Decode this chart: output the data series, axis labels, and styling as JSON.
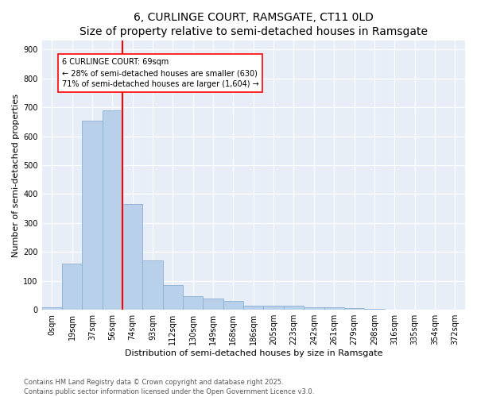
{
  "title": "6, CURLINGE COURT, RAMSGATE, CT11 0LD",
  "subtitle": "Size of property relative to semi-detached houses in Ramsgate",
  "xlabel": "Distribution of semi-detached houses by size in Ramsgate",
  "ylabel": "Number of semi-detached properties",
  "bar_labels": [
    "0sqm",
    "19sqm",
    "37sqm",
    "56sqm",
    "74sqm",
    "93sqm",
    "112sqm",
    "130sqm",
    "149sqm",
    "168sqm",
    "186sqm",
    "205sqm",
    "223sqm",
    "242sqm",
    "261sqm",
    "279sqm",
    "298sqm",
    "316sqm",
    "335sqm",
    "354sqm",
    "372sqm"
  ],
  "bar_values": [
    8,
    160,
    655,
    690,
    365,
    170,
    85,
    48,
    38,
    30,
    15,
    14,
    13,
    10,
    8,
    5,
    3,
    1,
    0,
    0,
    0
  ],
  "bar_color": "#b8d0ea",
  "bar_edge_color": "#8ab0d0",
  "vline_x": 3.5,
  "vline_color": "red",
  "annotation_text": "6 CURLINGE COURT: 69sqm\n← 28% of semi-detached houses are smaller (630)\n71% of semi-detached houses are larger (1,604) →",
  "annotation_box_color": "white",
  "annotation_box_edge": "red",
  "ylim": [
    0,
    930
  ],
  "yticks": [
    0,
    100,
    200,
    300,
    400,
    500,
    600,
    700,
    800,
    900
  ],
  "bg_color": "#ffffff",
  "plot_bg": "#e8eef8",
  "footer_line1": "Contains HM Land Registry data © Crown copyright and database right 2025.",
  "footer_line2": "Contains public sector information licensed under the Open Government Licence v3.0.",
  "title_fontsize": 10,
  "xlabel_fontsize": 8,
  "ylabel_fontsize": 8,
  "tick_fontsize": 7,
  "footer_fontsize": 6,
  "annotation_fontsize": 7
}
